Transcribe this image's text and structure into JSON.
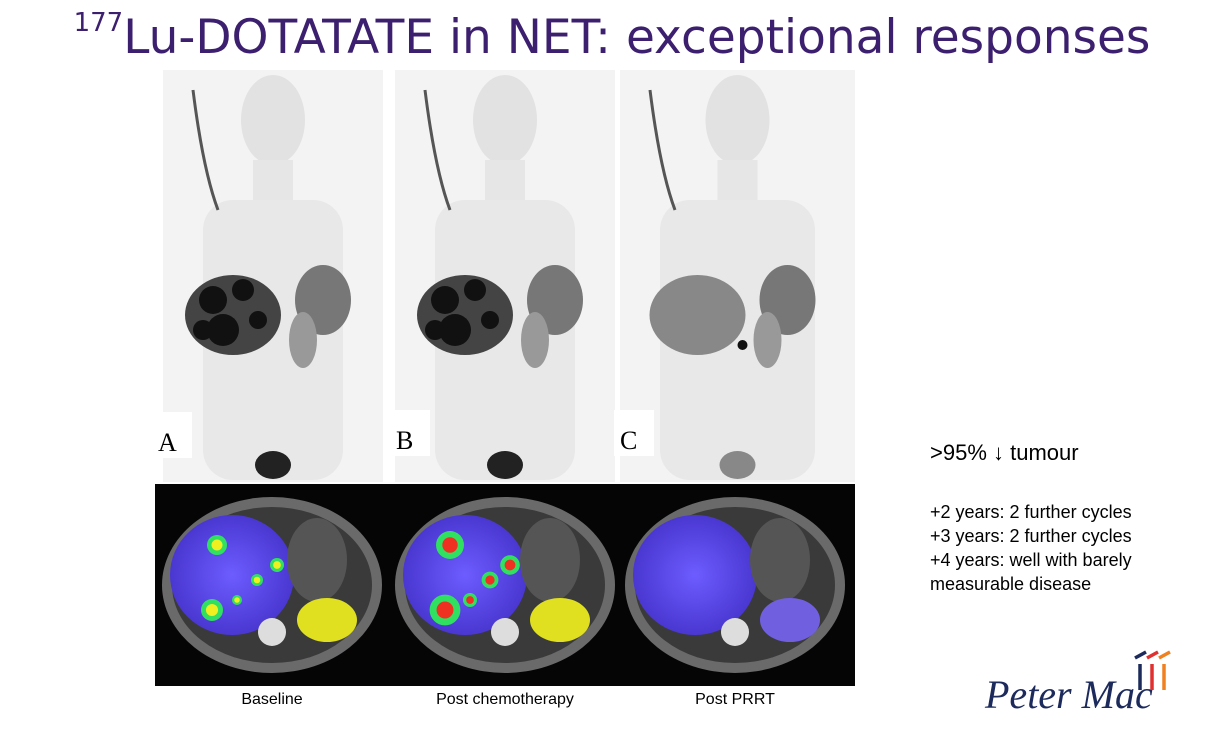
{
  "header": {
    "superscript": "177",
    "title": "Lu-DOTATATE in NET: exceptional responses"
  },
  "panels": [
    {
      "label": "A",
      "caption": "Baseline"
    },
    {
      "label": "B",
      "caption": "Post chemotherapy"
    },
    {
      "label": "C",
      "caption": "Post PRRT"
    }
  ],
  "summary": ">95% ↓ tumour",
  "notes": [
    "+2 years: 2 further cycles",
    "+3 years: 2 further cycles",
    "+4 years: well with barely",
    "measurable disease"
  ],
  "logo": "Peter Mac"
}
